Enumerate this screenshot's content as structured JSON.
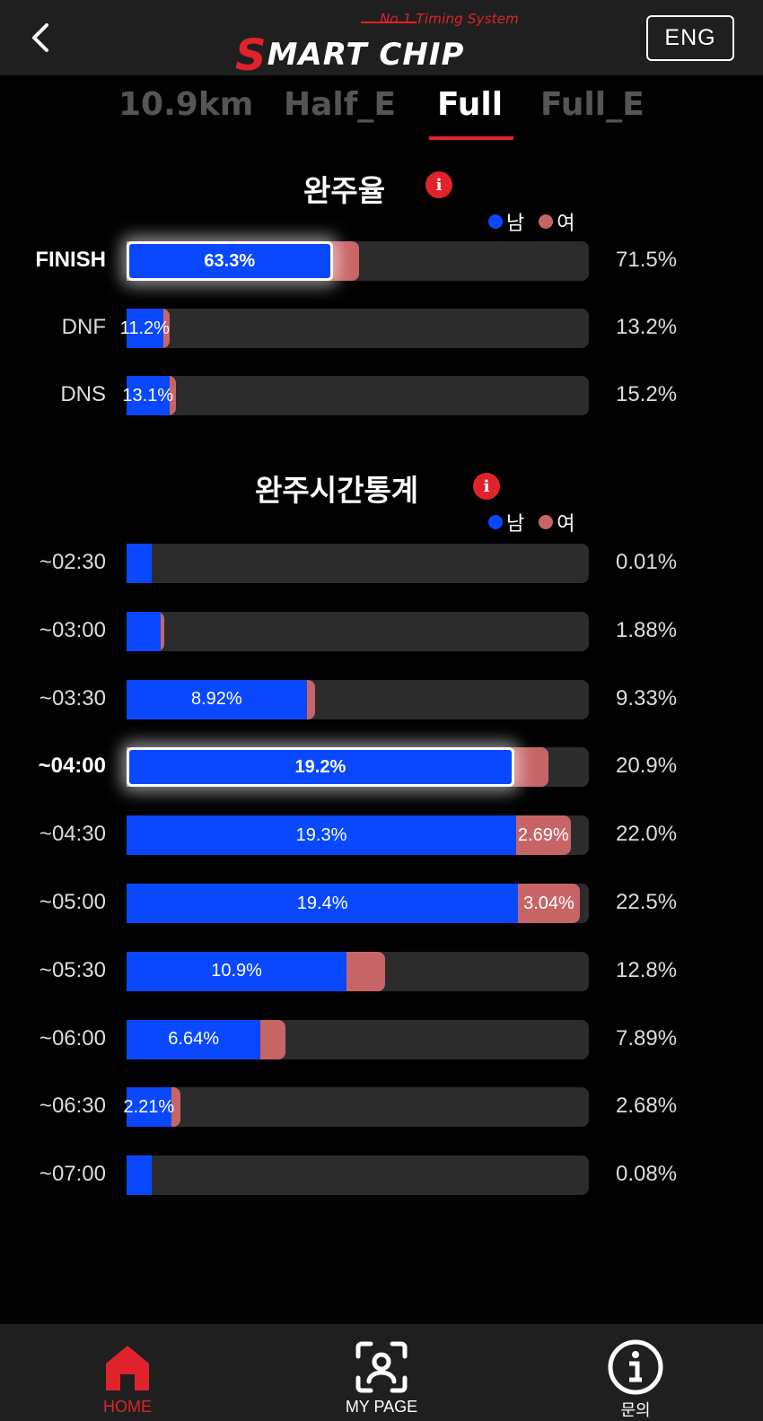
{
  "header": {
    "logo_tagline": "No.1 Timing System",
    "logo_text": "MART CHIP",
    "logo_letter": "S",
    "lang_button": "ENG"
  },
  "tabs": [
    {
      "label": "10.9km",
      "active": false
    },
    {
      "label": "Half_E",
      "active": false
    },
    {
      "label": "Full",
      "active": true
    },
    {
      "label": "Full_E",
      "active": false
    }
  ],
  "colors": {
    "male": "#0a48ff",
    "female": "#c76566",
    "accent": "#e0232a",
    "track": "#2c2c2c"
  },
  "finish_rate": {
    "title": "완주율",
    "info_icon": "i",
    "legend_male": "남",
    "legend_female": "여",
    "rows": [
      {
        "label": "FINISH",
        "male": 63.3,
        "male_label": "63.3%",
        "female": 8.2,
        "female_label": "",
        "total": "71.5%",
        "highlight": true
      },
      {
        "label": "DNF",
        "male": 11.2,
        "male_label": "11.2%",
        "female": 2.0,
        "female_label": "",
        "total": "13.2%",
        "highlight": false
      },
      {
        "label": "DNS",
        "male": 13.1,
        "male_label": "13.1%",
        "female": 2.1,
        "female_label": "",
        "total": "15.2%",
        "highlight": false
      }
    ]
  },
  "finish_time": {
    "title": "완주시간통계",
    "info_icon": "i",
    "legend_male": "남",
    "legend_female": "여",
    "rows": [
      {
        "label": "~02:30",
        "male": 0.01,
        "male_label": "",
        "female": 0.0,
        "female_label": "",
        "total": "0.01%",
        "highlight": false
      },
      {
        "label": "~03:00",
        "male": 1.7,
        "male_label": "",
        "female": 0.18,
        "female_label": "",
        "total": "1.88%",
        "highlight": false
      },
      {
        "label": "~03:30",
        "male": 8.92,
        "male_label": "8.92%",
        "female": 0.41,
        "female_label": "",
        "total": "9.33%",
        "highlight": false
      },
      {
        "label": "~04:00",
        "male": 19.2,
        "male_label": "19.2%",
        "female": 1.7,
        "female_label": "",
        "total": "20.9%",
        "highlight": true
      },
      {
        "label": "~04:30",
        "male": 19.3,
        "male_label": "19.3%",
        "female": 2.69,
        "female_label": "2.69%",
        "total": "22.0%",
        "highlight": false
      },
      {
        "label": "~05:00",
        "male": 19.4,
        "male_label": "19.4%",
        "female": 3.04,
        "female_label": "3.04%",
        "total": "22.5%",
        "highlight": false
      },
      {
        "label": "~05:30",
        "male": 10.9,
        "male_label": "10.9%",
        "female": 1.9,
        "female_label": "",
        "total": "12.8%",
        "highlight": false
      },
      {
        "label": "~06:00",
        "male": 6.64,
        "male_label": "6.64%",
        "female": 1.25,
        "female_label": "",
        "total": "7.89%",
        "highlight": false
      },
      {
        "label": "~06:30",
        "male": 2.21,
        "male_label": "2.21%",
        "female": 0.47,
        "female_label": "",
        "total": "2.68%",
        "highlight": false
      },
      {
        "label": "~07:00",
        "male": 0.06,
        "male_label": "",
        "female": 0.02,
        "female_label": "",
        "total": "0.08%",
        "highlight": false
      }
    ]
  },
  "bottom_nav": [
    {
      "label": "HOME",
      "icon": "home-icon",
      "active": true
    },
    {
      "label": "MY PAGE",
      "icon": "face-scan-icon",
      "active": false
    },
    {
      "label": "문의",
      "icon": "info-circle-icon",
      "active": false
    }
  ]
}
